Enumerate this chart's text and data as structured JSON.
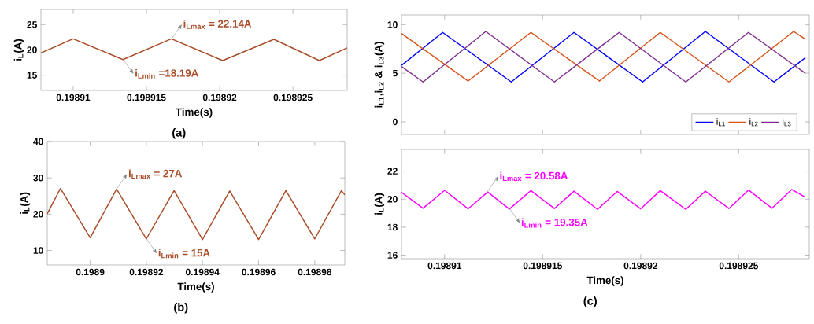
{
  "chart_data": [
    {
      "type": "line",
      "xlabel": "Time(s)",
      "ylabel": "i$_{L}$(A)",
      "xlim": [
        0.1989078,
        0.1989287
      ],
      "ylim": [
        12,
        28
      ],
      "xticks": [
        0.19891,
        0.198915,
        0.19892,
        0.198925
      ],
      "yticks": [
        15,
        20,
        25
      ],
      "series": [
        {
          "color": "#a84b26",
          "x": [
            0.1989078,
            0.19891,
            0.1989134,
            0.1989167,
            0.1989202,
            0.1989237,
            0.1989268,
            0.1989287
          ],
          "values": [
            19.4,
            22.2,
            18.1,
            22.2,
            17.9,
            22.1,
            17.9,
            20.4
          ]
        }
      ],
      "annotations": [
        {
          "text": "i$_{Lmax}$ = 22.14A",
          "x": 0.1989167,
          "y": 22.14
        },
        {
          "text": "i$_{Lmin}$ =18.19A",
          "x": 0.1989134,
          "y": 18.19
        },
        "(a)"
      ]
    },
    {
      "type": "line",
      "xlabel": "Time(s)",
      "ylabel": "i$_{L}$(A)",
      "xlim": [
        0.1988847,
        0.1989907
      ],
      "ylim": [
        6,
        40
      ],
      "xticks": [
        0.1989,
        0.19892,
        0.19894,
        0.19896,
        0.19898
      ],
      "yticks": [
        10,
        20,
        30,
        40
      ],
      "series": [
        {
          "color": "#a84b26",
          "x": [
            0.1988847,
            0.1988894,
            0.1989,
            0.1989094,
            0.19892,
            0.1989299,
            0.19894,
            0.1989497,
            0.19896,
            0.1989697,
            0.19898,
            0.1989895,
            0.1989907
          ],
          "values": [
            20.1,
            27.1,
            13.5,
            26.9,
            13.2,
            26.5,
            13.0,
            26.4,
            13.0,
            26.5,
            13.2,
            26.5,
            25.3
          ]
        }
      ],
      "annotations": [
        {
          "text": "i$_{Lmax}$ = 27A",
          "x": 0.1989094,
          "y": 27
        },
        {
          "text": "i$_{Lmin}$ = 15A",
          "x": 0.19892,
          "y": 13.2
        },
        "(b)"
      ]
    },
    {
      "type": "line",
      "ylabel": "i$_{L1}$,i$_{L2}$ & i$_{L3}$(A)",
      "xlim": [
        0.1989078,
        0.1989286
      ],
      "ylim": [
        -1.3,
        11
      ],
      "xticks": [
        {
          "value": 0.19891,
          "label": null
        },
        {
          "value": 0.198915,
          "label": null
        },
        {
          "value": 0.19892,
          "label": null
        },
        {
          "value": 0.198925,
          "label": null
        }
      ],
      "yticks": [
        0,
        5,
        10
      ],
      "tick_labels": "y",
      "legend": "bottom right",
      "series": [
        {
          "name": "i$_{L1}$",
          "color": "#0000ff",
          "x": [
            0.1989078,
            0.1989099,
            0.1989134,
            0.1989166,
            0.1989201,
            0.1989233,
            0.1989268,
            0.1989284
          ],
          "values": [
            5.8,
            9.2,
            4.1,
            9.2,
            4.1,
            9.3,
            4.1,
            6.6
          ]
        },
        {
          "name": "i$_{L2}$",
          "color": "#d95319",
          "x": [
            0.1989078,
            0.1989112,
            0.1989144,
            0.1989179,
            0.198921,
            0.1989245,
            0.1989278,
            0.1989284
          ],
          "values": [
            9.1,
            4.2,
            9.2,
            4.2,
            9.2,
            4.1,
            9.3,
            8.5
          ]
        },
        {
          "name": "i$_{L3}$",
          "color": "#7e2f8e",
          "x": [
            0.1989078,
            0.1989089,
            0.1989121,
            0.1989156,
            0.1989189,
            0.1989223,
            0.1989255,
            0.1989284
          ],
          "values": [
            5.7,
            4.1,
            9.3,
            4.1,
            9.2,
            4.1,
            9.2,
            5.0
          ]
        }
      ]
    },
    {
      "type": "line",
      "xlabel": "Time(s)",
      "ylabel": "i$_{L}$(A)",
      "xlim": [
        0.1989078,
        0.1989286
      ],
      "ylim": [
        15.75,
        23.55
      ],
      "xticks": [
        0.19891,
        0.198915,
        0.19892,
        0.198925
      ],
      "yticks": [
        16,
        18,
        20,
        22
      ],
      "series": [
        {
          "color": "#ff00ff",
          "x": [
            0.1989078,
            0.1989089,
            0.19891,
            0.1989112,
            0.1989122,
            0.1989133,
            0.1989144,
            0.1989156,
            0.1989166,
            0.1989178,
            0.1989188,
            0.19892,
            0.198921,
            0.1989223,
            0.1989233,
            0.1989245,
            0.1989255,
            0.1989267,
            0.1989277,
            0.1989284
          ],
          "values": [
            20.49,
            19.35,
            20.63,
            19.31,
            20.51,
            19.29,
            20.61,
            19.33,
            20.57,
            19.27,
            20.55,
            19.31,
            20.61,
            19.27,
            20.57,
            19.33,
            20.65,
            19.35,
            20.69,
            20.14
          ]
        }
      ],
      "annotations": [
        {
          "text": "i$_{Lmax}$ = 20.58A",
          "x": 0.1989122,
          "y": 20.58
        },
        {
          "text": "i$_{Lmin}$ = 19.35A",
          "x": 0.1989133,
          "y": 19.35
        },
        "(c)"
      ]
    }
  ]
}
